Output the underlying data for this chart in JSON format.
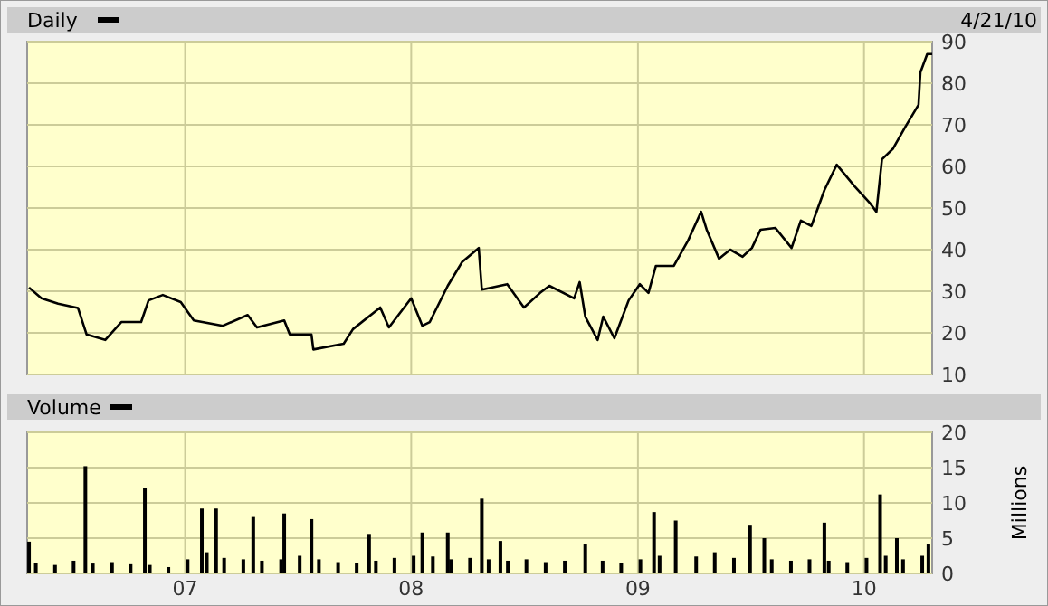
{
  "chart_data": [
    {
      "type": "line",
      "legend": "top left",
      "grid": true,
      "tick_labels": "y",
      "annotations": [
        "4/21/10"
      ],
      "xlim": [
        "2006-04-21",
        "2010-04-21"
      ],
      "xticks": [
        {
          "value": "2007-01-01",
          "label": null
        },
        {
          "value": "2008-01-01",
          "label": null
        },
        {
          "value": "2009-01-01",
          "label": null
        },
        {
          "value": "2010-01-01",
          "label": null
        }
      ],
      "ylim": [
        10,
        90
      ],
      "yticks": [
        10,
        20,
        30,
        40,
        50,
        60,
        70,
        80,
        90
      ],
      "x": [
        "2006-04-24",
        "2006-05-14",
        "2006-06-10",
        "2006-07-12",
        "2006-07-26",
        "2006-08-25",
        "2006-09-20",
        "2006-10-22",
        "2006-11-03",
        "2006-11-26",
        "2006-12-25",
        "2007-01-15",
        "2007-03-03",
        "2007-04-12",
        "2007-04-27",
        "2007-06-10",
        "2007-06-19",
        "2007-07-24",
        "2007-07-27",
        "2007-09-14",
        "2007-09-29",
        "2007-11-12",
        "2007-11-26",
        "2008-01-01",
        "2008-01-19",
        "2008-01-31",
        "2008-02-29",
        "2008-03-23",
        "2008-04-19",
        "2008-04-24",
        "2008-06-04",
        "2008-07-01",
        "2008-07-27",
        "2008-08-11",
        "2008-09-20",
        "2008-09-29",
        "2008-10-08",
        "2008-10-28",
        "2008-11-06",
        "2008-11-24",
        "2008-12-17",
        "2009-01-04",
        "2009-01-18",
        "2009-01-30",
        "2009-02-28",
        "2009-03-23",
        "2009-04-13",
        "2009-04-22",
        "2009-05-12",
        "2009-05-30",
        "2009-06-19",
        "2009-07-04",
        "2009-07-18",
        "2009-08-11",
        "2009-09-06",
        "2009-09-21",
        "2009-10-08",
        "2009-10-29",
        "2009-11-18",
        "2009-12-17",
        "2010-01-10",
        "2010-01-21",
        "2010-01-30",
        "2010-02-17",
        "2010-03-09",
        "2010-03-30",
        "2010-04-02",
        "2010-04-13",
        "2010-04-21"
      ],
      "series": [
        {
          "name": "Daily",
          "color": "#000000",
          "values": [
            30.9,
            28.3,
            27,
            26,
            19.6,
            18.3,
            22.6,
            22.6,
            27.8,
            29.1,
            27.4,
            23,
            21.7,
            24.3,
            21.3,
            23,
            19.6,
            19.6,
            16,
            17.4,
            20.9,
            26.1,
            21.3,
            28.3,
            21.7,
            22.6,
            31.3,
            37,
            40.4,
            30.4,
            31.7,
            26.1,
            29.6,
            31.3,
            28.3,
            32.2,
            23.9,
            18.3,
            23.9,
            18.7,
            27.8,
            31.7,
            29.6,
            36.1,
            36.1,
            42.2,
            49.1,
            44.8,
            37.8,
            40,
            38.3,
            40.4,
            44.8,
            45.2,
            40.4,
            47,
            45.7,
            54.3,
            60.4,
            55.2,
            51.3,
            49.1,
            61.7,
            64.3,
            69.6,
            74.8,
            82.6,
            87,
            87
          ]
        }
      ]
    },
    {
      "type": "bar",
      "legend": "top left",
      "grid": true,
      "ylabel": "Millions",
      "xlim": [
        "2006-04-21",
        "2010-04-21"
      ],
      "xticks": [
        {
          "value": "2007-01-01",
          "label": "07"
        },
        {
          "value": "2008-01-01",
          "label": "08"
        },
        {
          "value": "2009-01-01",
          "label": "09"
        },
        {
          "value": "2010-01-01",
          "label": "10"
        }
      ],
      "ylim": [
        0,
        20
      ],
      "yticks": [
        0,
        5,
        10,
        15,
        20
      ],
      "x": [
        "2006-04-24",
        "2006-05-05",
        "2006-06-05",
        "2006-07-05",
        "2006-07-24",
        "2006-08-05",
        "2006-09-05",
        "2006-10-05",
        "2006-10-28",
        "2006-11-05",
        "2006-12-05",
        "2007-01-05",
        "2007-01-28",
        "2007-02-05",
        "2007-02-20",
        "2007-03-05",
        "2007-04-05",
        "2007-04-21",
        "2007-05-05",
        "2007-06-05",
        "2007-06-10",
        "2007-07-05",
        "2007-07-24",
        "2007-08-05",
        "2007-09-05",
        "2007-10-05",
        "2007-10-25",
        "2007-11-05",
        "2007-12-05",
        "2008-01-05",
        "2008-01-19",
        "2008-02-05",
        "2008-02-29",
        "2008-03-05",
        "2008-04-05",
        "2008-04-24",
        "2008-05-05",
        "2008-05-24",
        "2008-06-05",
        "2008-07-05",
        "2008-08-05",
        "2008-09-05",
        "2008-10-08",
        "2008-11-05",
        "2008-12-05",
        "2009-01-05",
        "2009-01-27",
        "2009-02-05",
        "2009-03-03",
        "2009-04-05",
        "2009-05-05",
        "2009-06-05",
        "2009-07-01",
        "2009-07-24",
        "2009-08-05",
        "2009-09-05",
        "2009-10-05",
        "2009-10-29",
        "2009-11-05",
        "2009-12-05",
        "2010-01-05",
        "2010-01-27",
        "2010-02-05",
        "2010-02-23",
        "2010-03-05",
        "2010-04-05",
        "2010-04-15"
      ],
      "series": [
        {
          "name": "Volume",
          "color": "#000000",
          "values": [
            4.5,
            1.5,
            1.2,
            1.8,
            15.2,
            1.4,
            1.6,
            1.3,
            12.1,
            1.2,
            0.9,
            2.0,
            9.2,
            3.0,
            9.2,
            2.2,
            2.0,
            8.0,
            1.8,
            2.0,
            8.5,
            2.5,
            7.7,
            2.0,
            1.6,
            1.5,
            5.6,
            1.8,
            2.2,
            2.5,
            5.8,
            2.4,
            5.8,
            2.0,
            2.2,
            10.6,
            2.0,
            4.6,
            1.8,
            2.0,
            1.6,
            1.8,
            4.1,
            1.8,
            1.5,
            2.0,
            8.7,
            2.5,
            7.5,
            2.4,
            3.0,
            2.2,
            6.9,
            5.0,
            2.0,
            1.8,
            2.0,
            7.2,
            1.8,
            1.6,
            2.2,
            11.2,
            2.5,
            5.0,
            2.0,
            2.5,
            4.1
          ]
        }
      ]
    }
  ]
}
